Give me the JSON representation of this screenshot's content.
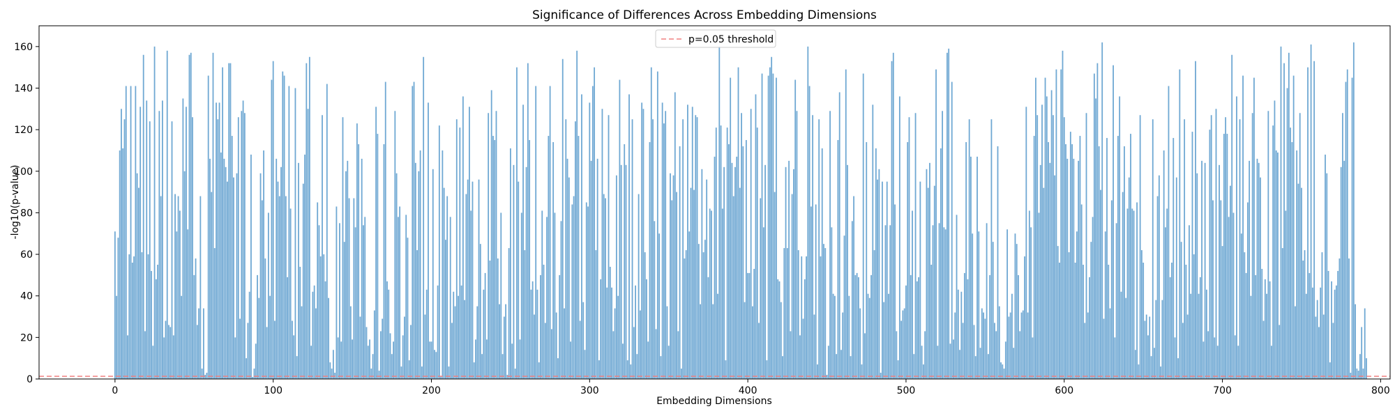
{
  "chart_data": {
    "type": "bar",
    "title": "Significance of Differences Across Embedding Dimensions",
    "xlabel": "Embedding Dimensions",
    "ylabel": "-log10(p-value)",
    "xlim": [
      -48,
      806
    ],
    "ylim": [
      0,
      170
    ],
    "xticks": [
      0,
      100,
      200,
      300,
      400,
      500,
      600,
      700,
      800
    ],
    "yticks": [
      0,
      20,
      40,
      60,
      80,
      100,
      120,
      140,
      160
    ],
    "grid": false,
    "legend_position": "top-center",
    "threshold": {
      "label": "p=0.05 threshold",
      "value": 1.301
    },
    "colors": {
      "bars": "#6fa8d3",
      "threshold": "#f08080"
    },
    "n_dimensions": 768,
    "x_start": 0,
    "values": [
      71,
      40,
      68,
      110,
      130,
      111,
      125,
      141,
      21,
      60,
      141,
      56,
      59,
      141,
      99,
      92,
      131,
      61,
      156,
      23,
      134,
      60,
      124,
      52,
      16,
      160,
      48,
      55,
      129,
      88,
      134,
      20,
      28,
      158,
      26,
      25,
      124,
      21,
      89,
      71,
      88,
      81,
      40,
      135,
      100,
      131,
      72,
      156,
      157,
      126,
      50,
      58,
      26,
      34,
      88,
      5,
      34,
      2,
      3,
      146,
      106,
      90,
      157,
      63,
      133,
      125,
      133,
      109,
      150,
      106,
      102,
      95,
      152,
      152,
      117,
      97,
      20,
      99,
      126,
      29,
      129,
      134,
      128,
      10,
      27,
      42,
      108,
      1,
      5,
      17,
      50,
      39,
      99,
      86,
      110,
      58,
      25,
      80,
      40,
      144,
      153,
      28,
      106,
      95,
      88,
      102,
      148,
      146,
      88,
      49,
      141,
      82,
      28,
      21,
      140,
      11,
      104,
      54,
      35,
      94,
      108,
      152,
      130,
      155,
      16,
      42,
      45,
      34,
      85,
      74,
      59,
      127,
      60,
      47,
      142,
      39,
      8,
      5,
      14,
      3,
      83,
      20,
      75,
      18,
      126,
      66,
      100,
      105,
      87,
      35,
      19,
      87,
      73,
      123,
      113,
      30,
      106,
      74,
      78,
      25,
      16,
      19,
      5,
      12,
      33,
      131,
      118,
      4,
      23,
      29,
      113,
      143,
      47,
      43,
      22,
      12,
      18,
      129,
      99,
      78,
      83,
      6,
      21,
      30,
      79,
      68,
      9,
      26,
      141,
      143,
      104,
      62,
      100,
      110,
      6,
      155,
      31,
      43,
      133,
      18,
      18,
      101,
      14,
      13,
      45,
      122,
      1,
      110,
      92,
      67,
      88,
      6,
      78,
      27,
      42,
      35,
      125,
      40,
      121,
      45,
      136,
      38,
      89,
      96,
      131,
      81,
      95,
      8,
      19,
      35,
      96,
      65,
      12,
      43,
      51,
      19,
      128,
      57,
      139,
      117,
      115,
      129,
      58,
      36,
      80,
      12,
      30,
      36,
      2,
      63,
      111,
      17,
      103,
      5,
      150,
      95,
      19,
      80,
      132,
      62,
      102,
      152,
      115,
      43,
      47,
      31,
      141,
      43,
      8,
      50,
      81,
      55,
      27,
      78,
      117,
      141,
      24,
      114,
      80,
      32,
      10,
      50,
      76,
      154,
      34,
      125,
      106,
      97,
      18,
      84,
      88,
      124,
      158,
      117,
      28,
      137,
      37,
      14,
      85,
      83,
      133,
      105,
      141,
      150,
      62,
      106,
      9,
      48,
      130,
      89,
      87,
      44,
      127,
      54,
      44,
      23,
      34,
      98,
      40,
      144,
      103,
      17,
      113,
      103,
      9,
      137,
      7,
      125,
      25,
      45,
      12,
      89,
      33,
      133,
      130,
      61,
      48,
      18,
      114,
      150,
      125,
      76,
      24,
      148,
      70,
      11,
      133,
      123,
      129,
      35,
      16,
      99,
      86,
      98,
      138,
      90,
      23,
      112,
      5,
      125,
      58,
      62,
      132,
      71,
      92,
      131,
      91,
      127,
      126,
      65,
      36,
      101,
      61,
      67,
      96,
      49,
      82,
      81,
      36,
      107,
      121,
      41,
      160,
      122,
      82,
      102,
      9,
      121,
      113,
      145,
      104,
      88,
      102,
      107,
      150,
      92,
      128,
      112,
      37,
      115,
      51,
      51,
      130,
      35,
      53,
      137,
      121,
      27,
      87,
      147,
      73,
      103,
      9,
      146,
      150,
      155,
      147,
      90,
      145,
      48,
      47,
      37,
      11,
      63,
      102,
      63,
      105,
      23,
      89,
      101,
      144,
      129,
      62,
      21,
      59,
      29,
      48,
      59,
      160,
      141,
      83,
      127,
      31,
      84,
      7,
      125,
      59,
      111,
      65,
      63,
      2,
      16,
      129,
      73,
      41,
      40,
      12,
      115,
      138,
      14,
      32,
      69,
      149,
      103,
      40,
      11,
      76,
      88,
      50,
      51,
      49,
      34,
      7,
      147,
      22,
      114,
      41,
      39,
      50,
      132,
      62,
      111,
      96,
      101,
      3,
      95,
      37,
      74,
      95,
      41,
      74,
      153,
      157,
      84,
      23,
      9,
      136,
      28,
      33,
      34,
      45,
      114,
      126,
      50,
      81,
      12,
      128,
      47,
      49,
      95,
      16,
      7,
      23,
      101,
      92,
      104,
      55,
      74,
      93,
      149,
      16,
      75,
      111,
      129,
      73,
      72,
      157,
      159,
      17,
      143,
      19,
      32,
      79,
      43,
      14,
      42,
      27,
      51,
      114,
      48,
      125,
      107,
      70,
      26,
      11,
      107,
      71,
      15,
      34,
      32,
      29,
      75,
      12,
      50,
      125,
      66,
      27,
      23,
      112,
      35,
      8,
      7,
      5,
      18,
      72,
      30,
      32,
      41,
      15,
      70,
      65,
      50,
      23,
      32,
      33,
      59,
      131,
      32,
      81,
      73,
      20,
      117,
      145,
      127,
      80,
      103,
      132,
      92,
      145,
      136,
      114,
      104,
      139,
      127,
      98,
      149,
      64,
      56,
      149,
      158,
      126,
      113,
      106,
      61,
      119,
      113,
      106,
      56,
      71,
      105,
      117,
      84,
      55,
      27,
      128,
      32,
      49,
      66,
      78,
      147,
      135,
      152,
      112,
      91,
      162,
      29,
      71,
      116,
      55,
      34,
      86,
      151,
      20,
      75,
      117,
      136,
      42,
      90,
      112,
      39,
      82,
      97,
      118,
      82,
      81,
      14,
      85,
      7,
      127,
      62,
      56,
      28,
      31,
      21,
      30,
      11,
      125,
      15,
      38,
      88,
      98,
      6,
      38,
      110,
      73,
      82,
      141,
      49,
      56,
      116,
      20,
      97,
      10,
      149,
      66,
      27,
      125,
      55,
      31,
      74,
      41,
      119,
      60,
      153,
      99,
      41,
      49,
      105,
      18,
      104,
      43,
      23,
      120,
      127,
      86,
      20,
      130,
      16,
      103,
      86,
      64,
      118,
      126,
      118,
      78,
      93,
      156,
      80,
      21,
      136,
      16,
      125,
      70,
      146,
      61,
      51,
      85,
      105,
      40,
      128,
      145,
      50,
      106,
      104,
      97,
      53,
      28,
      48,
      41,
      129,
      47,
      16,
      122,
      134,
      110,
      109,
      26,
      160,
      63,
      152,
      81,
      140,
      157,
      121,
      114,
      146,
      35,
      110,
      94,
      128,
      92,
      57,
      62,
      41,
      150,
      51,
      161,
      44,
      153,
      30,
      38,
      25,
      44,
      61,
      31,
      108,
      99,
      52,
      8,
      47,
      27,
      43,
      45,
      52,
      58,
      102,
      128,
      105,
      143,
      149,
      58,
      3,
      145,
      162,
      36,
      5,
      4,
      12,
      25,
      5,
      34,
      10
    ]
  }
}
